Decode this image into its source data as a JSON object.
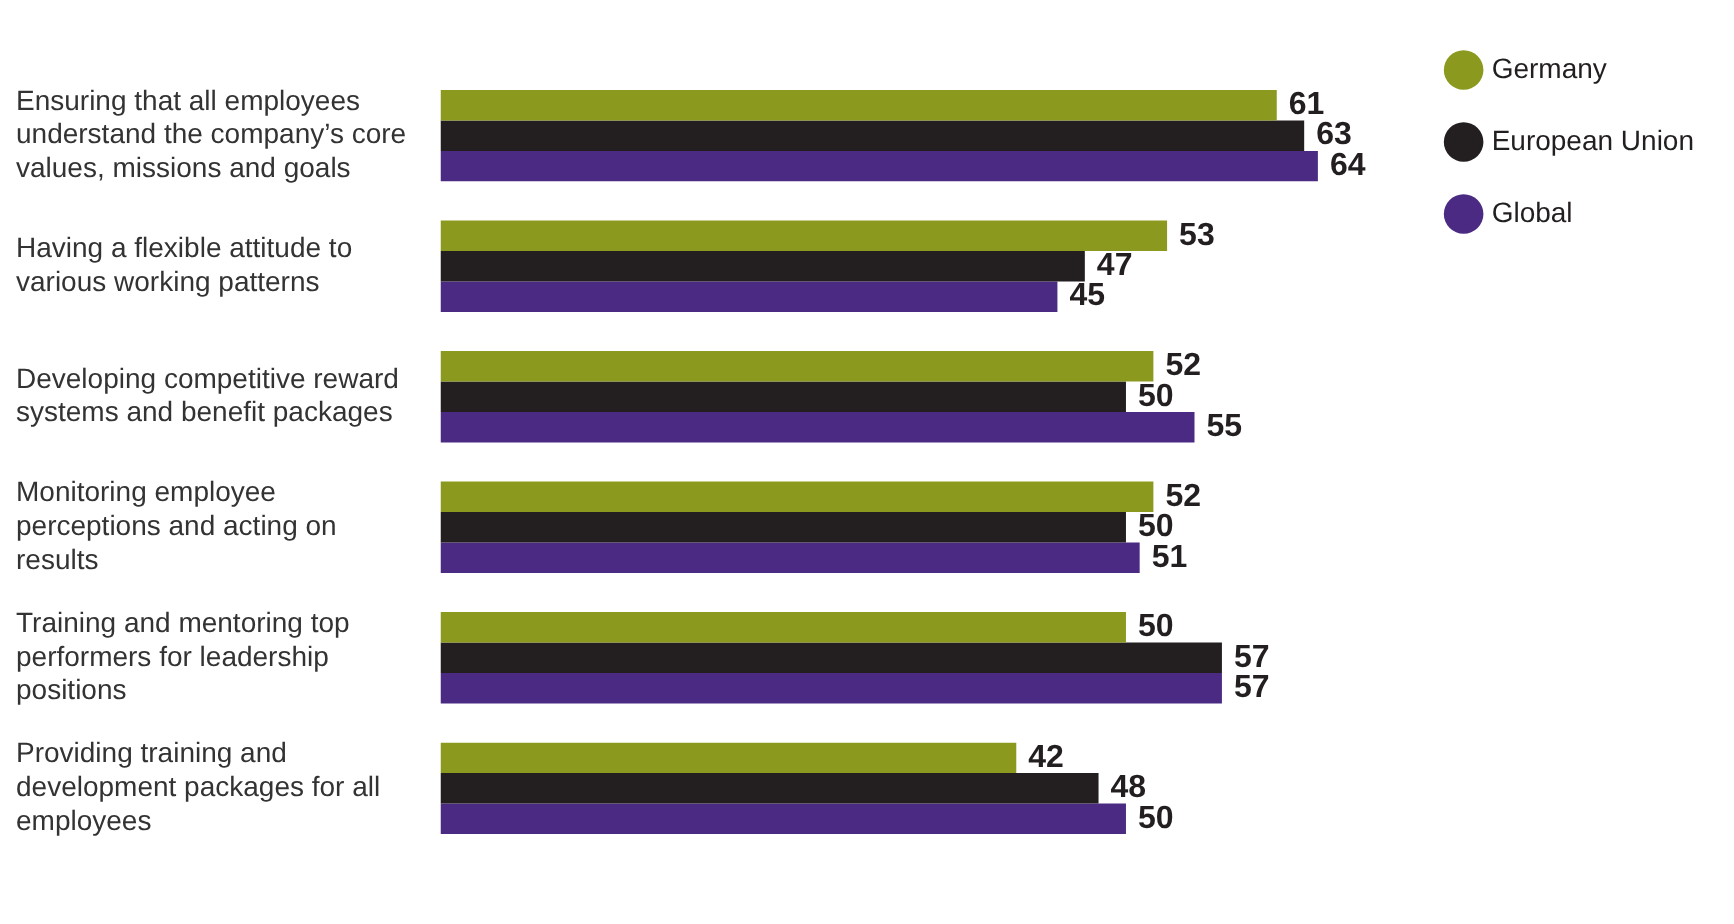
{
  "chart_data": {
    "type": "bar",
    "orientation": "horizontal",
    "data_labels": true,
    "legend": "top right",
    "categories": [
      "Ensuring that all employees understand the company’s core values, missions and goals",
      "Having a flexible attitude to various working patterns",
      "Developing competitive reward systems and benefit packages",
      "Monitoring employee perceptions and acting on results",
      "Training and mentoring top performers for leadership positions",
      "Providing training and development packages for all employees"
    ],
    "series": [
      {
        "name": "Germany",
        "color": "#8b9a1e",
        "values": [
          61,
          53,
          52,
          52,
          50,
          42
        ]
      },
      {
        "name": "European Union",
        "color": "#231f20",
        "values": [
          63,
          47,
          50,
          50,
          57,
          48
        ]
      },
      {
        "name": "Global",
        "color": "#4b2a83",
        "values": [
          64,
          45,
          55,
          51,
          57,
          50
        ]
      }
    ]
  }
}
